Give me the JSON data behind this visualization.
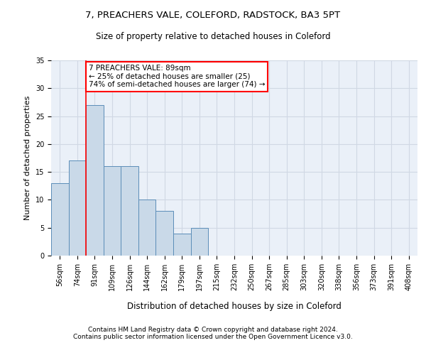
{
  "title1": "7, PREACHERS VALE, COLEFORD, RADSTOCK, BA3 5PT",
  "title2": "Size of property relative to detached houses in Coleford",
  "xlabel": "Distribution of detached houses by size in Coleford",
  "ylabel": "Number of detached properties",
  "bin_labels": [
    "56sqm",
    "74sqm",
    "91sqm",
    "109sqm",
    "126sqm",
    "144sqm",
    "162sqm",
    "179sqm",
    "197sqm",
    "215sqm",
    "232sqm",
    "250sqm",
    "267sqm",
    "285sqm",
    "303sqm",
    "320sqm",
    "338sqm",
    "356sqm",
    "373sqm",
    "391sqm",
    "408sqm"
  ],
  "counts": [
    13,
    17,
    27,
    16,
    16,
    10,
    8,
    4,
    5,
    0,
    0,
    0,
    0,
    0,
    0,
    0,
    0,
    0,
    0,
    0,
    0
  ],
  "bar_color": "#c9d9e8",
  "bar_edge_color": "#5b8db8",
  "annotation_text": "7 PREACHERS VALE: 89sqm\n← 25% of detached houses are smaller (25)\n74% of semi-detached houses are larger (74) →",
  "annotation_box_color": "white",
  "annotation_box_edge_color": "red",
  "vline_color": "red",
  "vline_index": 2,
  "ylim": [
    0,
    35
  ],
  "yticks": [
    0,
    5,
    10,
    15,
    20,
    25,
    30,
    35
  ],
  "grid_color": "#d0d8e4",
  "background_color": "#eaf0f8",
  "footer_text": "Contains HM Land Registry data © Crown copyright and database right 2024.\nContains public sector information licensed under the Open Government Licence v3.0.",
  "title1_fontsize": 9.5,
  "title2_fontsize": 8.5,
  "xlabel_fontsize": 8.5,
  "ylabel_fontsize": 8,
  "tick_fontsize": 7,
  "annotation_fontsize": 7.5,
  "footer_fontsize": 6.5
}
